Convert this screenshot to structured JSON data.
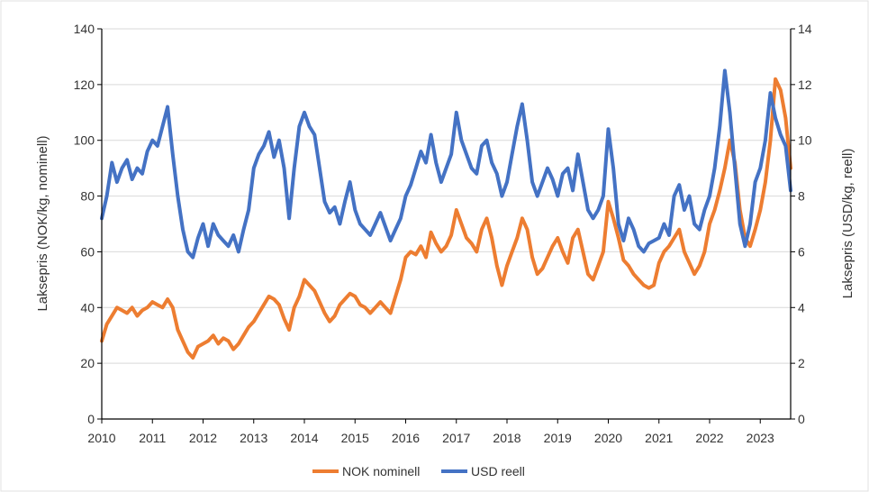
{
  "chart_data": {
    "type": "line",
    "title": "",
    "xlabel": "",
    "ylabel_left": "Laksepris (NOK/kg, nominell)",
    "ylabel_right": "Laksepris (USD/kg, reell)",
    "xlim": [
      2010,
      2023.6
    ],
    "ylim_left": [
      0,
      140
    ],
    "ylim_right": [
      0,
      14
    ],
    "x_ticks": [
      "2010",
      "2011",
      "2012",
      "2013",
      "2014",
      "2015",
      "2016",
      "2017",
      "2018",
      "2019",
      "2020",
      "2021",
      "2022",
      "2023"
    ],
    "y_left_ticks": [
      "0",
      "20",
      "40",
      "60",
      "80",
      "100",
      "120",
      "140"
    ],
    "y_right_ticks": [
      "0",
      "2",
      "4",
      "6",
      "8",
      "10",
      "12",
      "14"
    ],
    "grid": "horizontal",
    "legend_position": "bottom",
    "series": [
      {
        "name": "NOK nominell",
        "axis": "left",
        "color": "#ED7D31",
        "x": [
          2010.0,
          2010.1,
          2010.2,
          2010.3,
          2010.4,
          2010.5,
          2010.6,
          2010.7,
          2010.8,
          2010.9,
          2011.0,
          2011.1,
          2011.2,
          2011.3,
          2011.4,
          2011.5,
          2011.6,
          2011.7,
          2011.8,
          2011.9,
          2012.0,
          2012.1,
          2012.2,
          2012.3,
          2012.4,
          2012.5,
          2012.6,
          2012.7,
          2012.8,
          2012.9,
          2013.0,
          2013.1,
          2013.2,
          2013.3,
          2013.4,
          2013.5,
          2013.6,
          2013.7,
          2013.8,
          2013.9,
          2014.0,
          2014.1,
          2014.2,
          2014.3,
          2014.4,
          2014.5,
          2014.6,
          2014.7,
          2014.8,
          2014.9,
          2015.0,
          2015.1,
          2015.2,
          2015.3,
          2015.4,
          2015.5,
          2015.6,
          2015.7,
          2015.8,
          2015.9,
          2016.0,
          2016.1,
          2016.2,
          2016.3,
          2016.4,
          2016.5,
          2016.6,
          2016.7,
          2016.8,
          2016.9,
          2017.0,
          2017.1,
          2017.2,
          2017.3,
          2017.4,
          2017.5,
          2017.6,
          2017.7,
          2017.8,
          2017.9,
          2018.0,
          2018.1,
          2018.2,
          2018.3,
          2018.4,
          2018.5,
          2018.6,
          2018.7,
          2018.8,
          2018.9,
          2019.0,
          2019.1,
          2019.2,
          2019.3,
          2019.4,
          2019.5,
          2019.6,
          2019.7,
          2019.8,
          2019.9,
          2020.0,
          2020.1,
          2020.2,
          2020.3,
          2020.4,
          2020.5,
          2020.6,
          2020.7,
          2020.8,
          2020.9,
          2021.0,
          2021.1,
          2021.2,
          2021.3,
          2021.4,
          2021.5,
          2021.6,
          2021.7,
          2021.8,
          2021.9,
          2022.0,
          2022.1,
          2022.2,
          2022.3,
          2022.4,
          2022.5,
          2022.6,
          2022.7,
          2022.8,
          2022.9,
          2023.0,
          2023.1,
          2023.2,
          2023.3,
          2023.4,
          2023.5,
          2023.6
        ],
        "values": [
          28,
          34,
          37,
          40,
          39,
          38,
          40,
          37,
          39,
          40,
          42,
          41,
          40,
          43,
          40,
          32,
          28,
          24,
          22,
          26,
          27,
          28,
          30,
          27,
          29,
          28,
          25,
          27,
          30,
          33,
          35,
          38,
          41,
          44,
          43,
          41,
          36,
          32,
          40,
          44,
          50,
          48,
          46,
          42,
          38,
          35,
          37,
          41,
          43,
          45,
          44,
          41,
          40,
          38,
          40,
          42,
          40,
          38,
          44,
          50,
          58,
          60,
          59,
          62,
          58,
          67,
          63,
          60,
          62,
          66,
          75,
          70,
          65,
          63,
          60,
          68,
          72,
          65,
          55,
          48,
          55,
          60,
          65,
          72,
          68,
          58,
          52,
          54,
          58,
          62,
          65,
          60,
          56,
          65,
          68,
          60,
          52,
          50,
          55,
          60,
          78,
          72,
          65,
          57,
          55,
          52,
          50,
          48,
          47,
          48,
          56,
          60,
          62,
          65,
          68,
          60,
          56,
          52,
          55,
          60,
          70,
          75,
          82,
          90,
          100,
          92,
          75,
          65,
          62,
          68,
          75,
          85,
          100,
          122,
          118,
          108,
          90
        ]
      },
      {
        "name": "USD reell",
        "axis": "right",
        "color": "#4472C4",
        "x": [
          2010.0,
          2010.1,
          2010.2,
          2010.3,
          2010.4,
          2010.5,
          2010.6,
          2010.7,
          2010.8,
          2010.9,
          2011.0,
          2011.1,
          2011.2,
          2011.3,
          2011.4,
          2011.5,
          2011.6,
          2011.7,
          2011.8,
          2011.9,
          2012.0,
          2012.1,
          2012.2,
          2012.3,
          2012.4,
          2012.5,
          2012.6,
          2012.7,
          2012.8,
          2012.9,
          2013.0,
          2013.1,
          2013.2,
          2013.3,
          2013.4,
          2013.5,
          2013.6,
          2013.7,
          2013.8,
          2013.9,
          2014.0,
          2014.1,
          2014.2,
          2014.3,
          2014.4,
          2014.5,
          2014.6,
          2014.7,
          2014.8,
          2014.9,
          2015.0,
          2015.1,
          2015.2,
          2015.3,
          2015.4,
          2015.5,
          2015.6,
          2015.7,
          2015.8,
          2015.9,
          2016.0,
          2016.1,
          2016.2,
          2016.3,
          2016.4,
          2016.5,
          2016.6,
          2016.7,
          2016.8,
          2016.9,
          2017.0,
          2017.1,
          2017.2,
          2017.3,
          2017.4,
          2017.5,
          2017.6,
          2017.7,
          2017.8,
          2017.9,
          2018.0,
          2018.1,
          2018.2,
          2018.3,
          2018.4,
          2018.5,
          2018.6,
          2018.7,
          2018.8,
          2018.9,
          2019.0,
          2019.1,
          2019.2,
          2019.3,
          2019.4,
          2019.5,
          2019.6,
          2019.7,
          2019.8,
          2019.9,
          2020.0,
          2020.1,
          2020.2,
          2020.3,
          2020.4,
          2020.5,
          2020.6,
          2020.7,
          2020.8,
          2020.9,
          2021.0,
          2021.1,
          2021.2,
          2021.3,
          2021.4,
          2021.5,
          2021.6,
          2021.7,
          2021.8,
          2021.9,
          2022.0,
          2022.1,
          2022.2,
          2022.3,
          2022.4,
          2022.5,
          2022.6,
          2022.7,
          2022.8,
          2022.9,
          2023.0,
          2023.1,
          2023.2,
          2023.3,
          2023.4,
          2023.5,
          2023.6
        ],
        "values": [
          7.2,
          8.0,
          9.2,
          8.5,
          9.0,
          9.3,
          8.6,
          9.0,
          8.8,
          9.6,
          10.0,
          9.8,
          10.5,
          11.2,
          9.5,
          8.0,
          6.8,
          6.0,
          5.8,
          6.5,
          7.0,
          6.2,
          7.0,
          6.6,
          6.4,
          6.2,
          6.6,
          6.0,
          6.8,
          7.5,
          9.0,
          9.5,
          9.8,
          10.3,
          9.4,
          10.0,
          9.0,
          7.2,
          9.0,
          10.5,
          11.0,
          10.5,
          10.2,
          9.0,
          7.8,
          7.4,
          7.6,
          7.0,
          7.8,
          8.5,
          7.5,
          7.0,
          6.8,
          6.6,
          7.0,
          7.4,
          6.9,
          6.4,
          6.8,
          7.2,
          8.0,
          8.4,
          9.0,
          9.6,
          9.2,
          10.2,
          9.2,
          8.5,
          9.0,
          9.5,
          11.0,
          10.0,
          9.5,
          9.0,
          8.8,
          9.8,
          10.0,
          9.2,
          8.8,
          8.0,
          8.5,
          9.5,
          10.5,
          11.3,
          10.0,
          8.5,
          8.0,
          8.5,
          9.0,
          8.6,
          8.0,
          8.8,
          9.0,
          8.2,
          9.5,
          8.5,
          7.5,
          7.2,
          7.5,
          8.0,
          10.4,
          9.0,
          7.0,
          6.4,
          7.2,
          6.8,
          6.2,
          6.0,
          6.3,
          6.4,
          6.5,
          7.0,
          6.6,
          8.0,
          8.4,
          7.5,
          8.0,
          7.0,
          6.8,
          7.5,
          8.0,
          9.0,
          10.5,
          12.5,
          11.0,
          9.0,
          7.0,
          6.2,
          7.0,
          8.5,
          9.0,
          10.0,
          11.7,
          10.8,
          10.2,
          9.8,
          8.2
        ]
      }
    ]
  },
  "legend": [
    {
      "label": "NOK nominell",
      "color": "#ED7D31"
    },
    {
      "label": "USD reell",
      "color": "#4472C4"
    }
  ]
}
